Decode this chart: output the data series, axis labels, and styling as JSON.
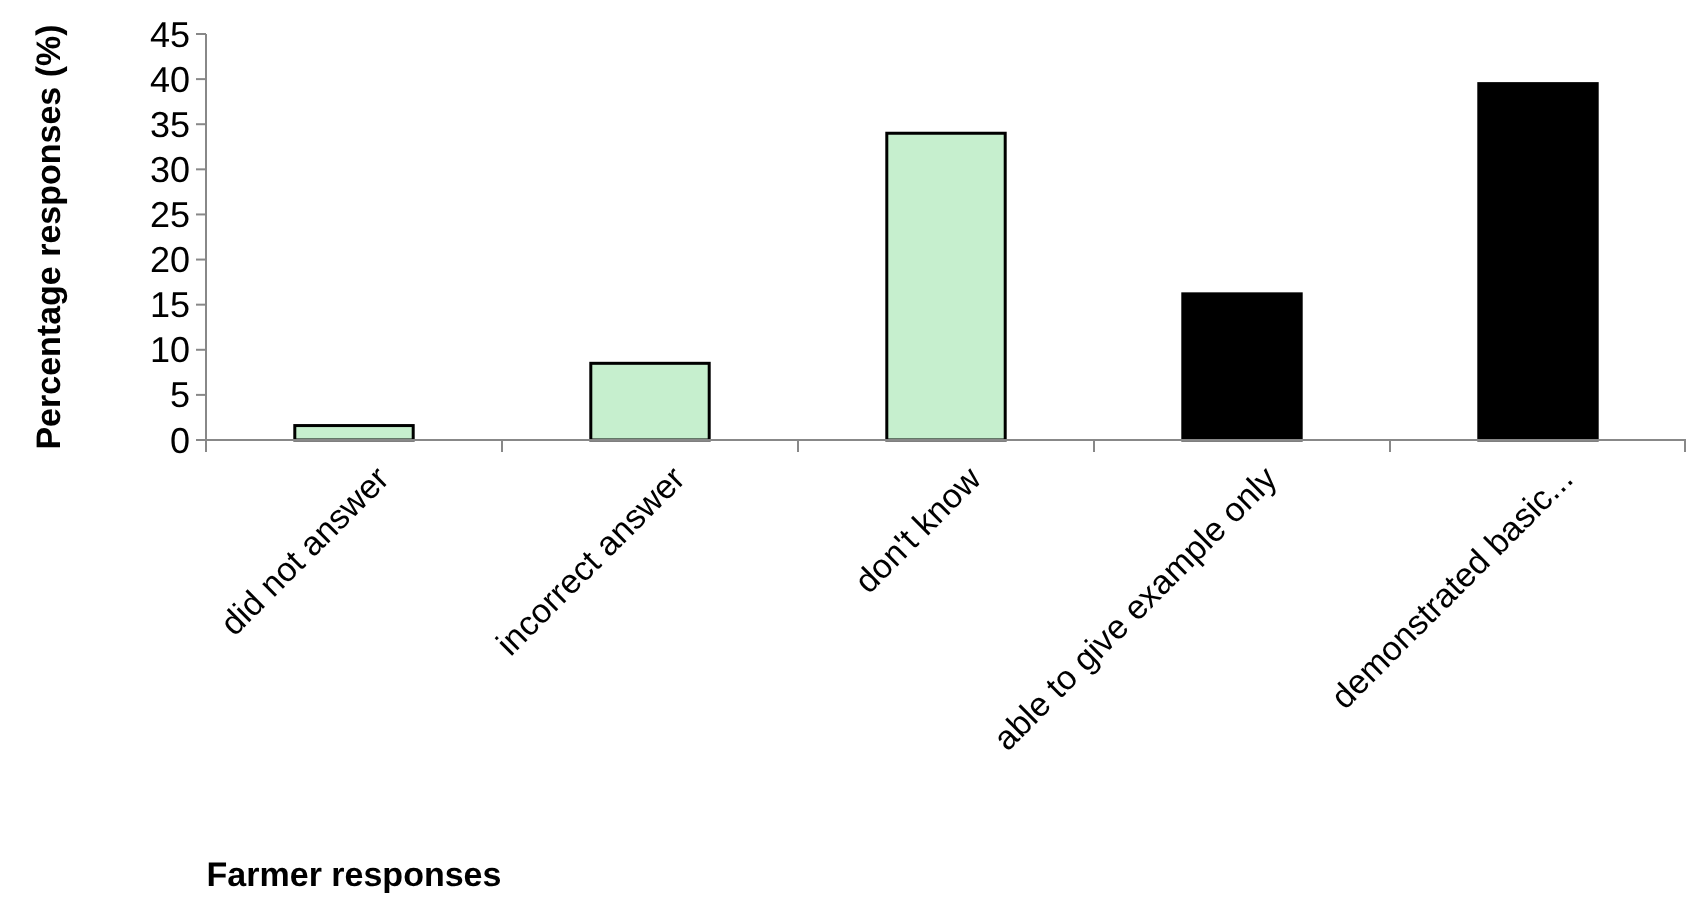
{
  "chart_data": {
    "type": "bar",
    "xlabel": "Farmer responses",
    "ylabel": "Percentage responses (%)",
    "categories": [
      "did not answer",
      "incorrect answer",
      "don't know",
      "able to give example only",
      "demonstrated basic..."
    ],
    "values": [
      1.6,
      8.5,
      34,
      16.2,
      39.5
    ],
    "colors": [
      "#c6efce",
      "#c6efce",
      "#c6efce",
      "#000000",
      "#000000"
    ],
    "ylim": [
      0,
      45
    ],
    "yticks": [
      0,
      5,
      10,
      15,
      20,
      25,
      30,
      35,
      40,
      45
    ],
    "grid": false
  }
}
